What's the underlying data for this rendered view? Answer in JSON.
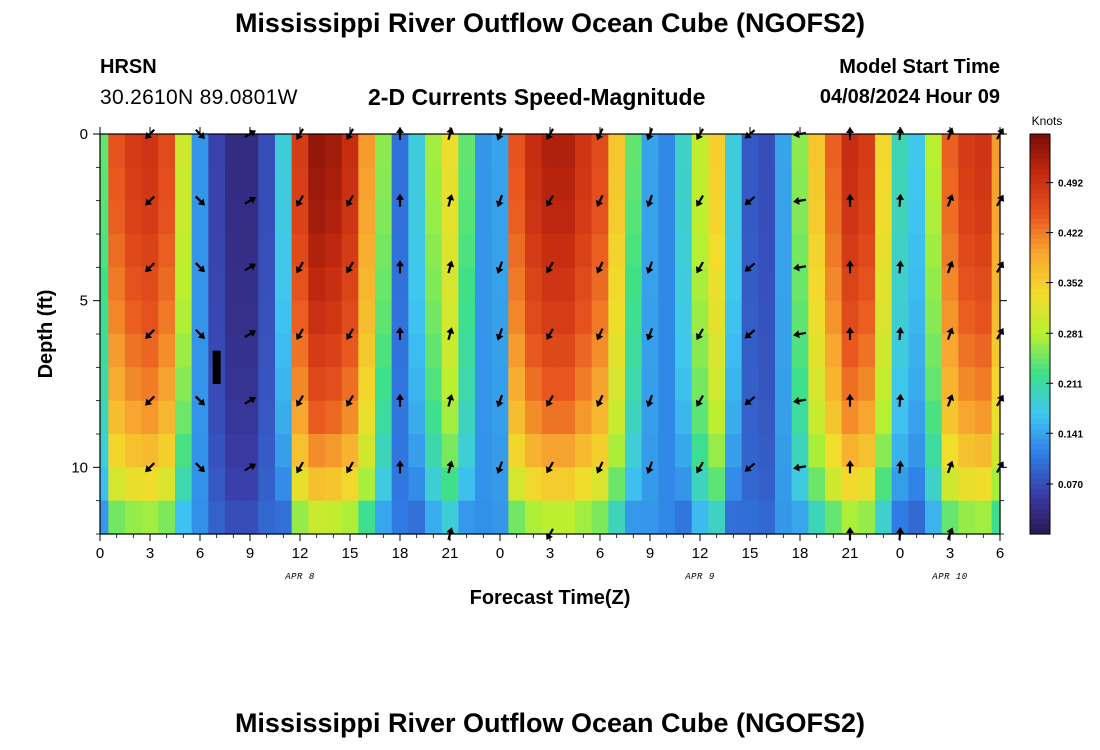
{
  "header": {
    "title": "Mississippi River Outflow Ocean Cube (NGOFS2)",
    "station": "HRSN",
    "coords": "30.2610N  89.0801W",
    "subtitle": "2-D Currents Speed-Magnitude",
    "start_label": "Model Start Time",
    "start_value": "04/08/2024 Hour 09"
  },
  "footer": {
    "title": "Mississippi River Outflow Ocean Cube (NGOFS2)"
  },
  "colors": {
    "colormap": [
      "#2a1a52",
      "#3a3ca8",
      "#2f7fe6",
      "#3fc6f0",
      "#3ee08a",
      "#b8f030",
      "#f2dc2c",
      "#f8a830",
      "#e8541e",
      "#c42a10",
      "#7a0c06"
    ],
    "arrow": "#000000",
    "axis": "#000000"
  },
  "chart_data": {
    "type": "heatmap",
    "title": "2-D Currents Speed-Magnitude",
    "xlabel": "Forecast Time(Z)",
    "ylabel": "Depth (ft)",
    "xlim": [
      0,
      54
    ],
    "ylim": [
      0,
      12
    ],
    "x_ticks": [
      0,
      3,
      6,
      9,
      12,
      15,
      18,
      21,
      24,
      27,
      30,
      33,
      36,
      39,
      42,
      45,
      48,
      51,
      54
    ],
    "x_tick_labels": [
      "0",
      "3",
      "6",
      "9",
      "12",
      "15",
      "18",
      "21",
      "0",
      "3",
      "6",
      "9",
      "12",
      "15",
      "18",
      "21",
      "0",
      "3",
      "6"
    ],
    "y_ticks": [
      0,
      5,
      10
    ],
    "y_tick_labels": [
      "0",
      "5",
      "10"
    ],
    "date_labels": [
      {
        "label": "APR 8",
        "hour": 12
      },
      {
        "label": "APR 9",
        "hour": 36
      },
      {
        "label": "APR 10",
        "hour": 51
      }
    ],
    "colorbar": {
      "title": "Knots",
      "min": 0.0,
      "max": 0.56,
      "ticks": [
        0.07,
        0.141,
        0.211,
        0.281,
        0.352,
        0.422,
        0.492
      ],
      "tick_labels": [
        "0.070",
        "0.141",
        "0.211",
        "0.281",
        "0.352",
        "0.422",
        "0.492"
      ]
    },
    "hourly_surface_speed": [
      0.24,
      0.45,
      0.48,
      0.49,
      0.46,
      0.3,
      0.13,
      0.06,
      0.03,
      0.03,
      0.07,
      0.18,
      0.48,
      0.54,
      0.53,
      0.5,
      0.4,
      0.26,
      0.1,
      0.18,
      0.27,
      0.33,
      0.24,
      0.13,
      0.14,
      0.45,
      0.5,
      0.52,
      0.52,
      0.49,
      0.46,
      0.36,
      0.24,
      0.14,
      0.12,
      0.19,
      0.29,
      0.35,
      0.18,
      0.08,
      0.07,
      0.14,
      0.26,
      0.36,
      0.44,
      0.5,
      0.48,
      0.34,
      0.2,
      0.17,
      0.28,
      0.44,
      0.48,
      0.49,
      0.4
    ],
    "depth_rows": [
      0.5,
      1.5,
      2.5,
      3.5,
      4.5,
      5.5,
      6.5,
      7.5,
      8.5,
      9.5,
      10.5,
      11.5
    ],
    "depth_factor": [
      1.0,
      0.99,
      0.98,
      0.96,
      0.94,
      0.92,
      0.89,
      0.86,
      0.82,
      0.76,
      0.68,
      0.55
    ],
    "arrow_depths": [
      0,
      2,
      4,
      6,
      8,
      10,
      12
    ],
    "arrow_hours": [
      3,
      6,
      9,
      12,
      15,
      18,
      21,
      24,
      27,
      30,
      33,
      36,
      39,
      42,
      45,
      48,
      51,
      54
    ],
    "arrow_directions_deg": [
      225,
      135,
      60,
      210,
      210,
      0,
      15,
      200,
      210,
      205,
      200,
      210,
      230,
      260,
      0,
      5,
      20,
      30
    ],
    "marker": {
      "hour": 7,
      "depth_from": 6.5,
      "depth_to": 7.5
    }
  }
}
